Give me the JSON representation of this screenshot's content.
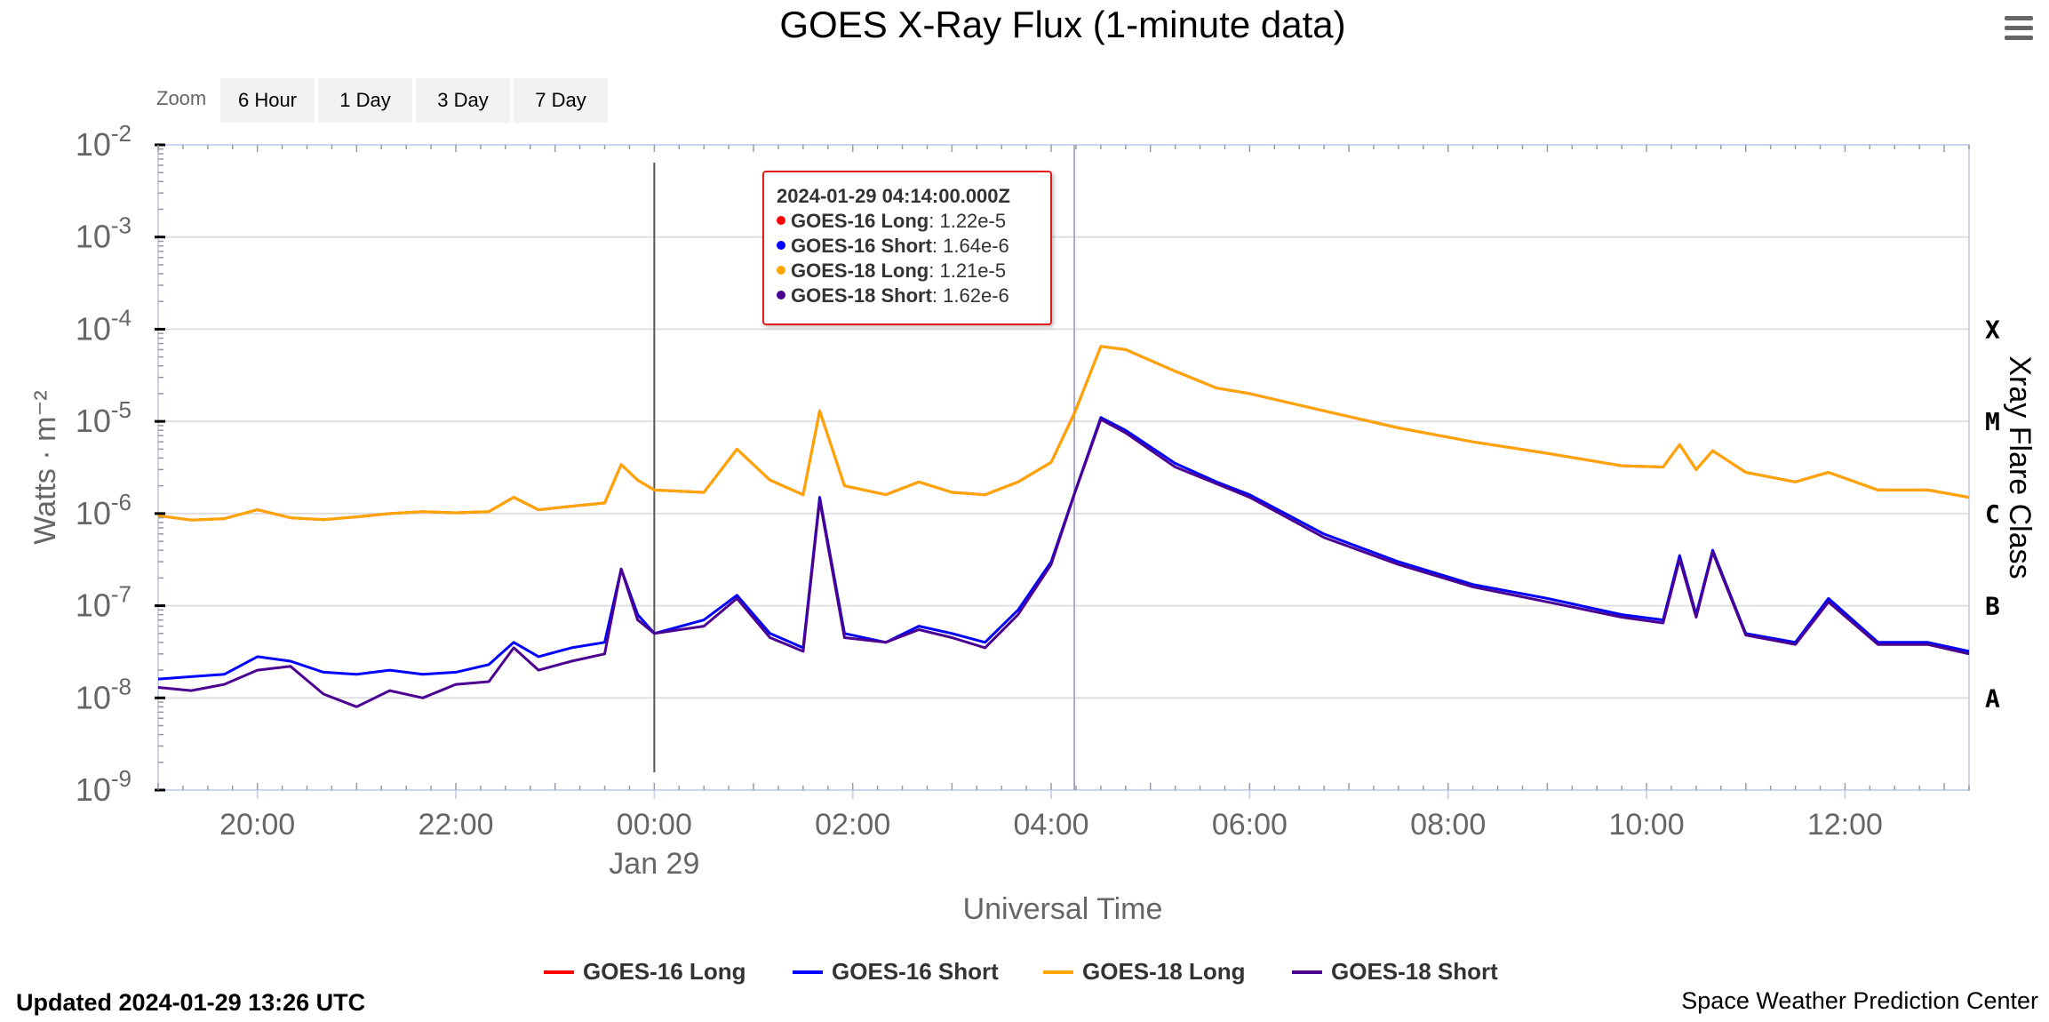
{
  "zoom": {
    "label": "Zoom",
    "buttons": [
      "6 Hour",
      "1 Day",
      "3 Day",
      "7 Day"
    ]
  },
  "tooltip": {
    "time": "2024-01-29 04:14:00.000Z",
    "rows": [
      {
        "name": "GOES-16 Long",
        "value": ": 1.22e-5",
        "color": "#ff0000"
      },
      {
        "name": "GOES-16 Short",
        "value": ": 1.64e-6",
        "color": "#0000ff"
      },
      {
        "name": "GOES-18 Long",
        "value": ": 1.21e-5",
        "color": "#ffa500"
      },
      {
        "name": "GOES-18 Short",
        "value": ": 1.62e-6",
        "color": "#4b0092"
      }
    ]
  },
  "footer": {
    "updated": "Updated 2024-01-29 13:26 UTC",
    "credit": "Space Weather Prediction Center"
  },
  "chart_data": {
    "type": "line",
    "title": "GOES X-Ray Flux (1-minute data)",
    "xlabel": "Universal Time",
    "ylabel": "Watts · m⁻²",
    "y2label": "Xray Flare Class",
    "yscale": "log",
    "ylim": [
      1e-09,
      0.01
    ],
    "y_ticks": [
      {
        "base": "10",
        "exp": "-2",
        "value": 0.01
      },
      {
        "base": "10",
        "exp": "-3",
        "value": 0.001
      },
      {
        "base": "10",
        "exp": "-4",
        "value": 0.0001
      },
      {
        "base": "10",
        "exp": "-5",
        "value": 1e-05
      },
      {
        "base": "10",
        "exp": "-6",
        "value": 1e-06
      },
      {
        "base": "10",
        "exp": "-7",
        "value": 1e-07
      },
      {
        "base": "10",
        "exp": "-8",
        "value": 1e-08
      },
      {
        "base": "10",
        "exp": "-9",
        "value": 1e-09
      }
    ],
    "xlim": [
      "2024-01-28T19:00Z",
      "2024-01-29T13:15Z"
    ],
    "x_ticks": [
      {
        "label": "20:00",
        "t": "2024-01-28T20:00Z"
      },
      {
        "label": "22:00",
        "t": "2024-01-28T22:00Z"
      },
      {
        "label": "00:00",
        "sublabel": "Jan 29",
        "t": "2024-01-29T00:00Z"
      },
      {
        "label": "02:00",
        "t": "2024-01-29T02:00Z"
      },
      {
        "label": "04:00",
        "t": "2024-01-29T04:00Z"
      },
      {
        "label": "06:00",
        "t": "2024-01-29T06:00Z"
      },
      {
        "label": "08:00",
        "t": "2024-01-29T08:00Z"
      },
      {
        "label": "10:00",
        "t": "2024-01-29T10:00Z"
      },
      {
        "label": "12:00",
        "t": "2024-01-29T12:00Z"
      }
    ],
    "flare_classes": [
      {
        "label": "X",
        "value": 0.0001
      },
      {
        "label": "M",
        "value": 1e-05
      },
      {
        "label": "C",
        "value": 1e-06
      },
      {
        "label": "B",
        "value": 1e-07
      },
      {
        "label": "A",
        "value": 1e-08
      }
    ],
    "crosshair_time": "2024-01-29T04:14Z",
    "day_boundary": "2024-01-29T00:00Z",
    "grid": true,
    "legend": "bottom-center",
    "series": [
      {
        "name": "GOES-16 Long",
        "color": "#ff0000",
        "width": 3,
        "x": [
          "2024-01-28T19:00Z",
          "2024-01-28T19:20Z",
          "2024-01-28T19:40Z",
          "2024-01-28T20:00Z",
          "2024-01-28T20:20Z",
          "2024-01-28T20:40Z",
          "2024-01-28T21:00Z",
          "2024-01-28T21:20Z",
          "2024-01-28T21:40Z",
          "2024-01-28T22:00Z",
          "2024-01-28T22:20Z",
          "2024-01-28T22:35Z",
          "2024-01-28T22:50Z",
          "2024-01-28T23:10Z",
          "2024-01-28T23:30Z",
          "2024-01-28T23:40Z",
          "2024-01-28T23:50Z",
          "2024-01-29T00:00Z",
          "2024-01-29T00:30Z",
          "2024-01-29T00:50Z",
          "2024-01-29T01:10Z",
          "2024-01-29T01:30Z",
          "2024-01-29T01:40Z",
          "2024-01-29T01:55Z",
          "2024-01-29T02:20Z",
          "2024-01-29T02:40Z",
          "2024-01-29T03:00Z",
          "2024-01-29T03:20Z",
          "2024-01-29T03:40Z",
          "2024-01-29T04:00Z",
          "2024-01-29T04:14Z",
          "2024-01-29T04:30Z",
          "2024-01-29T04:45Z",
          "2024-01-29T05:15Z",
          "2024-01-29T05:40Z",
          "2024-01-29T06:00Z",
          "2024-01-29T06:45Z",
          "2024-01-29T07:30Z",
          "2024-01-29T08:15Z",
          "2024-01-29T09:00Z",
          "2024-01-29T09:45Z",
          "2024-01-29T10:10Z",
          "2024-01-29T10:20Z",
          "2024-01-29T10:30Z",
          "2024-01-29T10:40Z",
          "2024-01-29T11:00Z",
          "2024-01-29T11:30Z",
          "2024-01-29T11:50Z",
          "2024-01-29T12:20Z",
          "2024-01-29T12:50Z",
          "2024-01-29T13:15Z"
        ],
        "y": [
          9.5e-07,
          8.5e-07,
          8.8e-07,
          1.1e-06,
          9e-07,
          8.6e-07,
          9.2e-07,
          1e-06,
          1.05e-06,
          1.02e-06,
          1.05e-06,
          1.5e-06,
          1.1e-06,
          1.2e-06,
          1.3e-06,
          3.4e-06,
          2.3e-06,
          1.8e-06,
          1.7e-06,
          5e-06,
          2.3e-06,
          1.6e-06,
          1.3e-05,
          2e-06,
          1.6e-06,
          2.2e-06,
          1.7e-06,
          1.6e-06,
          2.2e-06,
          3.6e-06,
          1.22e-05,
          6.5e-05,
          6e-05,
          3.5e-05,
          2.3e-05,
          2e-05,
          1.3e-05,
          8.5e-06,
          6e-06,
          4.5e-06,
          3.3e-06,
          3.2e-06,
          5.6e-06,
          3e-06,
          4.8e-06,
          2.8e-06,
          2.2e-06,
          2.8e-06,
          1.8e-06,
          1.8e-06,
          1.5e-06
        ]
      },
      {
        "name": "GOES-16 Short",
        "color": "#0000ff",
        "width": 3,
        "x": [
          "2024-01-28T19:00Z",
          "2024-01-28T19:20Z",
          "2024-01-28T19:40Z",
          "2024-01-28T20:00Z",
          "2024-01-28T20:20Z",
          "2024-01-28T20:40Z",
          "2024-01-28T21:00Z",
          "2024-01-28T21:20Z",
          "2024-01-28T21:40Z",
          "2024-01-28T22:00Z",
          "2024-01-28T22:20Z",
          "2024-01-28T22:35Z",
          "2024-01-28T22:50Z",
          "2024-01-28T23:10Z",
          "2024-01-28T23:30Z",
          "2024-01-28T23:40Z",
          "2024-01-28T23:50Z",
          "2024-01-29T00:00Z",
          "2024-01-29T00:30Z",
          "2024-01-29T00:50Z",
          "2024-01-29T01:10Z",
          "2024-01-29T01:30Z",
          "2024-01-29T01:40Z",
          "2024-01-29T01:55Z",
          "2024-01-29T02:20Z",
          "2024-01-29T02:40Z",
          "2024-01-29T03:00Z",
          "2024-01-29T03:20Z",
          "2024-01-29T03:40Z",
          "2024-01-29T04:00Z",
          "2024-01-29T04:14Z",
          "2024-01-29T04:30Z",
          "2024-01-29T04:45Z",
          "2024-01-29T05:15Z",
          "2024-01-29T05:40Z",
          "2024-01-29T06:00Z",
          "2024-01-29T06:45Z",
          "2024-01-29T07:30Z",
          "2024-01-29T08:15Z",
          "2024-01-29T09:00Z",
          "2024-01-29T09:45Z",
          "2024-01-29T10:10Z",
          "2024-01-29T10:20Z",
          "2024-01-29T10:30Z",
          "2024-01-29T10:40Z",
          "2024-01-29T11:00Z",
          "2024-01-29T11:30Z",
          "2024-01-29T11:50Z",
          "2024-01-29T12:20Z",
          "2024-01-29T12:50Z",
          "2024-01-29T13:15Z"
        ],
        "y": [
          1.6e-08,
          1.7e-08,
          1.8e-08,
          2.8e-08,
          2.5e-08,
          1.9e-08,
          1.8e-08,
          2e-08,
          1.8e-08,
          1.9e-08,
          2.3e-08,
          4e-08,
          2.8e-08,
          3.5e-08,
          4e-08,
          2.5e-07,
          8e-08,
          5e-08,
          7e-08,
          1.3e-07,
          5e-08,
          3.5e-08,
          1.5e-06,
          5e-08,
          4e-08,
          6e-08,
          5e-08,
          4e-08,
          9e-08,
          3e-07,
          1.64e-06,
          1.1e-05,
          8e-06,
          3.5e-06,
          2.2e-06,
          1.6e-06,
          6e-07,
          3e-07,
          1.7e-07,
          1.2e-07,
          8e-08,
          7e-08,
          3.5e-07,
          8e-08,
          4e-07,
          5e-08,
          4e-08,
          1.2e-07,
          4e-08,
          4e-08,
          3.2e-08
        ]
      },
      {
        "name": "GOES-18 Long",
        "color": "#ffa500",
        "width": 3,
        "x": [
          "2024-01-28T19:00Z",
          "2024-01-28T19:20Z",
          "2024-01-28T19:40Z",
          "2024-01-28T20:00Z",
          "2024-01-28T20:20Z",
          "2024-01-28T20:40Z",
          "2024-01-28T21:00Z",
          "2024-01-28T21:20Z",
          "2024-01-28T21:40Z",
          "2024-01-28T22:00Z",
          "2024-01-28T22:20Z",
          "2024-01-28T22:35Z",
          "2024-01-28T22:50Z",
          "2024-01-28T23:10Z",
          "2024-01-28T23:30Z",
          "2024-01-28T23:40Z",
          "2024-01-28T23:50Z",
          "2024-01-29T00:00Z",
          "2024-01-29T00:30Z",
          "2024-01-29T00:50Z",
          "2024-01-29T01:10Z",
          "2024-01-29T01:30Z",
          "2024-01-29T01:40Z",
          "2024-01-29T01:55Z",
          "2024-01-29T02:20Z",
          "2024-01-29T02:40Z",
          "2024-01-29T03:00Z",
          "2024-01-29T03:20Z",
          "2024-01-29T03:40Z",
          "2024-01-29T04:00Z",
          "2024-01-29T04:14Z",
          "2024-01-29T04:30Z",
          "2024-01-29T04:45Z",
          "2024-01-29T05:15Z",
          "2024-01-29T05:40Z",
          "2024-01-29T06:00Z",
          "2024-01-29T06:45Z",
          "2024-01-29T07:30Z",
          "2024-01-29T08:15Z",
          "2024-01-29T09:00Z",
          "2024-01-29T09:45Z",
          "2024-01-29T10:10Z",
          "2024-01-29T10:20Z",
          "2024-01-29T10:30Z",
          "2024-01-29T10:40Z",
          "2024-01-29T11:00Z",
          "2024-01-29T11:30Z",
          "2024-01-29T11:50Z",
          "2024-01-29T12:20Z",
          "2024-01-29T12:50Z",
          "2024-01-29T13:15Z"
        ],
        "y": [
          9.5e-07,
          8.5e-07,
          8.8e-07,
          1.1e-06,
          9e-07,
          8.6e-07,
          9.2e-07,
          1e-06,
          1.05e-06,
          1.02e-06,
          1.05e-06,
          1.5e-06,
          1.1e-06,
          1.2e-06,
          1.3e-06,
          3.4e-06,
          2.3e-06,
          1.8e-06,
          1.7e-06,
          5e-06,
          2.3e-06,
          1.6e-06,
          1.3e-05,
          2e-06,
          1.6e-06,
          2.2e-06,
          1.7e-06,
          1.6e-06,
          2.2e-06,
          3.6e-06,
          1.21e-05,
          6.5e-05,
          6e-05,
          3.5e-05,
          2.3e-05,
          2e-05,
          1.3e-05,
          8.5e-06,
          6e-06,
          4.5e-06,
          3.3e-06,
          3.2e-06,
          5.6e-06,
          3e-06,
          4.8e-06,
          2.8e-06,
          2.2e-06,
          2.8e-06,
          1.8e-06,
          1.8e-06,
          1.5e-06
        ]
      },
      {
        "name": "GOES-18 Short",
        "color": "#4b0092",
        "width": 3,
        "x": [
          "2024-01-28T19:00Z",
          "2024-01-28T19:20Z",
          "2024-01-28T19:40Z",
          "2024-01-28T20:00Z",
          "2024-01-28T20:20Z",
          "2024-01-28T20:40Z",
          "2024-01-28T21:00Z",
          "2024-01-28T21:20Z",
          "2024-01-28T21:40Z",
          "2024-01-28T22:00Z",
          "2024-01-28T22:20Z",
          "2024-01-28T22:35Z",
          "2024-01-28T22:50Z",
          "2024-01-28T23:10Z",
          "2024-01-28T23:30Z",
          "2024-01-28T23:40Z",
          "2024-01-28T23:50Z",
          "2024-01-29T00:00Z",
          "2024-01-29T00:30Z",
          "2024-01-29T00:50Z",
          "2024-01-29T01:10Z",
          "2024-01-29T01:30Z",
          "2024-01-29T01:40Z",
          "2024-01-29T01:55Z",
          "2024-01-29T02:20Z",
          "2024-01-29T02:40Z",
          "2024-01-29T03:00Z",
          "2024-01-29T03:20Z",
          "2024-01-29T03:40Z",
          "2024-01-29T04:00Z",
          "2024-01-29T04:14Z",
          "2024-01-29T04:30Z",
          "2024-01-29T04:45Z",
          "2024-01-29T05:15Z",
          "2024-01-29T05:40Z",
          "2024-01-29T06:00Z",
          "2024-01-29T06:45Z",
          "2024-01-29T07:30Z",
          "2024-01-29T08:15Z",
          "2024-01-29T09:00Z",
          "2024-01-29T09:45Z",
          "2024-01-29T10:10Z",
          "2024-01-29T10:20Z",
          "2024-01-29T10:30Z",
          "2024-01-29T10:40Z",
          "2024-01-29T11:00Z",
          "2024-01-29T11:30Z",
          "2024-01-29T11:50Z",
          "2024-01-29T12:20Z",
          "2024-01-29T12:50Z",
          "2024-01-29T13:15Z"
        ],
        "y": [
          1.3e-08,
          1.2e-08,
          1.4e-08,
          2e-08,
          2.2e-08,
          1.1e-08,
          8e-09,
          1.2e-08,
          1e-08,
          1.4e-08,
          1.5e-08,
          3.5e-08,
          2e-08,
          2.5e-08,
          3e-08,
          2.5e-07,
          7e-08,
          5e-08,
          6e-08,
          1.2e-07,
          4.5e-08,
          3.2e-08,
          1.4e-06,
          4.5e-08,
          4e-08,
          5.5e-08,
          4.5e-08,
          3.5e-08,
          8e-08,
          2.8e-07,
          1.62e-06,
          1.05e-05,
          7.5e-06,
          3.2e-06,
          2.1e-06,
          1.5e-06,
          5.5e-07,
          2.8e-07,
          1.6e-07,
          1.1e-07,
          7.5e-08,
          6.5e-08,
          3.2e-07,
          7.5e-08,
          3.8e-07,
          4.8e-08,
          3.8e-08,
          1.1e-07,
          3.8e-08,
          3.8e-08,
          3e-08
        ]
      }
    ]
  }
}
